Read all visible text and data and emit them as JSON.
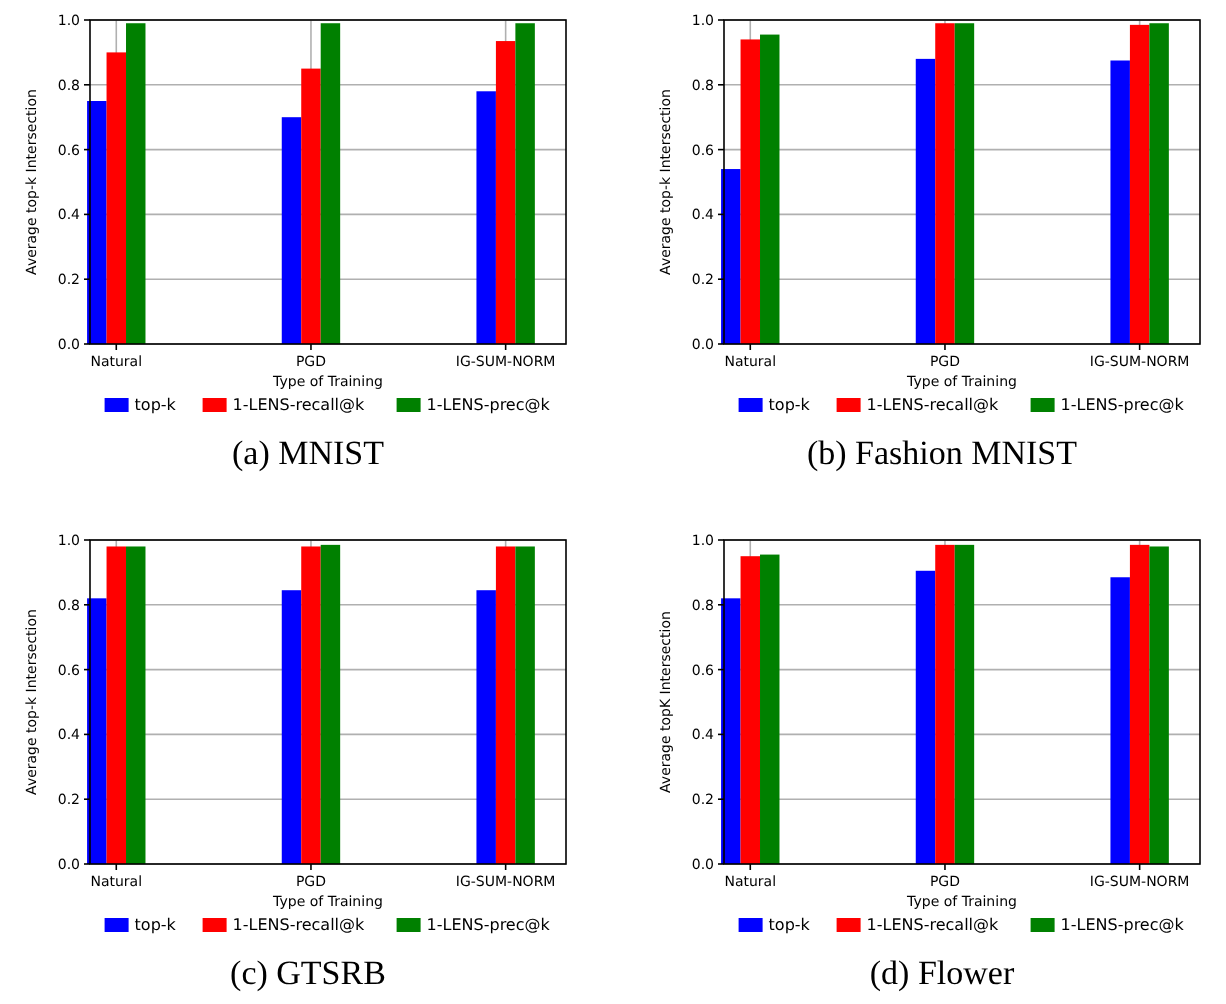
{
  "chart_data": [
    {
      "type": "bar",
      "title": "(a) MNIST",
      "xlabel": "Type of Training",
      "ylabel": "Average top-k Intersection",
      "categories": [
        "Natural",
        "PGD",
        "IG-SUM-NORM"
      ],
      "series": [
        {
          "name": "top-k",
          "color": "#0000ff",
          "values": [
            0.75,
            0.7,
            0.78
          ]
        },
        {
          "name": "1-LENS-recall@k",
          "color": "#ff0000",
          "values": [
            0.9,
            0.85,
            0.935
          ]
        },
        {
          "name": "1-LENS-prec@k",
          "color": "#008000",
          "values": [
            0.99,
            0.99,
            0.99
          ]
        }
      ],
      "ylim": [
        0,
        1
      ],
      "yticks": [
        {
          "value": 0,
          "label": "0.0"
        },
        {
          "value": 0.2,
          "label": "0.2"
        },
        {
          "value": 0.4,
          "label": "0.4"
        },
        {
          "value": 0.6,
          "label": "0.6"
        },
        {
          "value": 0.8,
          "label": "0.8"
        },
        {
          "value": 1,
          "label": "1.0"
        }
      ],
      "grid": true,
      "legend": "bottom"
    },
    {
      "type": "bar",
      "title": "(b) Fashion MNIST",
      "xlabel": "Type of Training",
      "ylabel": "Average top-k Intersection",
      "categories": [
        "Natural",
        "PGD",
        "IG-SUM-NORM"
      ],
      "series": [
        {
          "name": "top-k",
          "color": "#0000ff",
          "values": [
            0.54,
            0.88,
            0.875
          ]
        },
        {
          "name": "1-LENS-recall@k",
          "color": "#ff0000",
          "values": [
            0.94,
            0.99,
            0.985
          ]
        },
        {
          "name": "1-LENS-prec@k",
          "color": "#008000",
          "values": [
            0.955,
            0.99,
            0.99
          ]
        }
      ],
      "ylim": [
        0,
        1
      ],
      "yticks": [
        {
          "value": 0,
          "label": "0.0"
        },
        {
          "value": 0.2,
          "label": "0.2"
        },
        {
          "value": 0.4,
          "label": "0.4"
        },
        {
          "value": 0.6,
          "label": "0.6"
        },
        {
          "value": 0.8,
          "label": "0.8"
        },
        {
          "value": 1,
          "label": "1.0"
        }
      ],
      "grid": true,
      "legend": "bottom"
    },
    {
      "type": "bar",
      "title": "(c) GTSRB",
      "xlabel": "Type of Training",
      "ylabel": "Average top-k Intersection",
      "categories": [
        "Natural",
        "PGD",
        "IG-SUM-NORM"
      ],
      "series": [
        {
          "name": "top-k",
          "color": "#0000ff",
          "values": [
            0.82,
            0.845,
            0.845
          ]
        },
        {
          "name": "1-LENS-recall@k",
          "color": "#ff0000",
          "values": [
            0.98,
            0.98,
            0.98
          ]
        },
        {
          "name": "1-LENS-prec@k",
          "color": "#008000",
          "values": [
            0.98,
            0.985,
            0.98
          ]
        }
      ],
      "ylim": [
        0,
        1
      ],
      "yticks": [
        {
          "value": 0,
          "label": "0.0"
        },
        {
          "value": 0.2,
          "label": "0.2"
        },
        {
          "value": 0.4,
          "label": "0.4"
        },
        {
          "value": 0.6,
          "label": "0.6"
        },
        {
          "value": 0.8,
          "label": "0.8"
        },
        {
          "value": 1,
          "label": "1.0"
        }
      ],
      "grid": true,
      "legend": "bottom"
    },
    {
      "type": "bar",
      "title": "(d) Flower",
      "xlabel": "Type of Training",
      "ylabel": "Average topK Intersection",
      "categories": [
        "Natural",
        "PGD",
        "IG-SUM-NORM"
      ],
      "series": [
        {
          "name": "top-k",
          "color": "#0000ff",
          "values": [
            0.82,
            0.905,
            0.885
          ]
        },
        {
          "name": "1-LENS-recall@k",
          "color": "#ff0000",
          "values": [
            0.95,
            0.985,
            0.985
          ]
        },
        {
          "name": "1-LENS-prec@k",
          "color": "#008000",
          "values": [
            0.955,
            0.985,
            0.98
          ]
        }
      ],
      "ylim": [
        0,
        1
      ],
      "yticks": [
        {
          "value": 0,
          "label": "0.0"
        },
        {
          "value": 0.2,
          "label": "0.2"
        },
        {
          "value": 0.4,
          "label": "0.4"
        },
        {
          "value": 0.6,
          "label": "0.6"
        },
        {
          "value": 0.8,
          "label": "0.8"
        },
        {
          "value": 1,
          "label": "1.0"
        }
      ],
      "grid": true,
      "legend": "bottom"
    }
  ]
}
